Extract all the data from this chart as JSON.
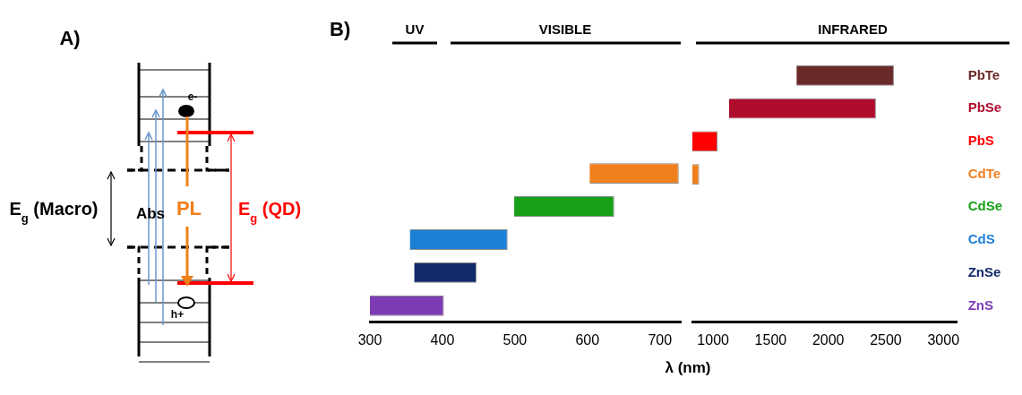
{
  "chart_data": [
    {
      "type": "other",
      "title": "A)",
      "annotations": [
        "E$_{g}$ (Macro)",
        "Abs",
        "PL",
        "E$_{g}$ (QD)",
        "e-",
        "h+"
      ]
    },
    {
      "type": "bar",
      "orientation": "horizontal",
      "title": "B)",
      "tick_labels": "x",
      "grid": false,
      "legend": false,
      "categories": [
        null,
        null,
        null,
        null,
        null
      ],
      "base": [
        603,
        499,
        355,
        361,
        300
      ],
      "values": [
        123,
        138,
        135,
        86,
        102
      ],
      "colors": [
        "#f0801e",
        "#18a018",
        "#1c80d6",
        "#102a6a",
        "#7e3cb4"
      ],
      "xlim": [
        300,
        730
      ],
      "xticks": [
        300,
        400,
        500,
        600,
        700
      ],
      "annotations": [
        "UV",
        "VISIBLE"
      ]
    },
    {
      "type": "bar",
      "orientation": "horizontal",
      "xlabel": "λ (nm)",
      "grid": false,
      "legend": false,
      "categories": [
        "PbTe",
        "PbSe",
        "PbS",
        "CdTe",
        "CdSe",
        "CdS",
        "ZnSe",
        "ZnS"
      ],
      "base": [
        1724,
        1137,
        809,
        809,
        null,
        null,
        null,
        null
      ],
      "values": [
        846,
        1277,
        229,
        70,
        null,
        null,
        null,
        null
      ],
      "colors": [
        "#6b2a2a",
        "#b00d2e",
        "#ff0000",
        "#f0801e",
        "#18a018",
        "#1c80d6",
        "#102a6a",
        "#7e3cb4"
      ],
      "xlim": [
        820,
        3120
      ],
      "xticks": [
        1000,
        1500,
        2000,
        2500,
        3000
      ],
      "annotations": [
        "INFRARED"
      ]
    }
  ]
}
